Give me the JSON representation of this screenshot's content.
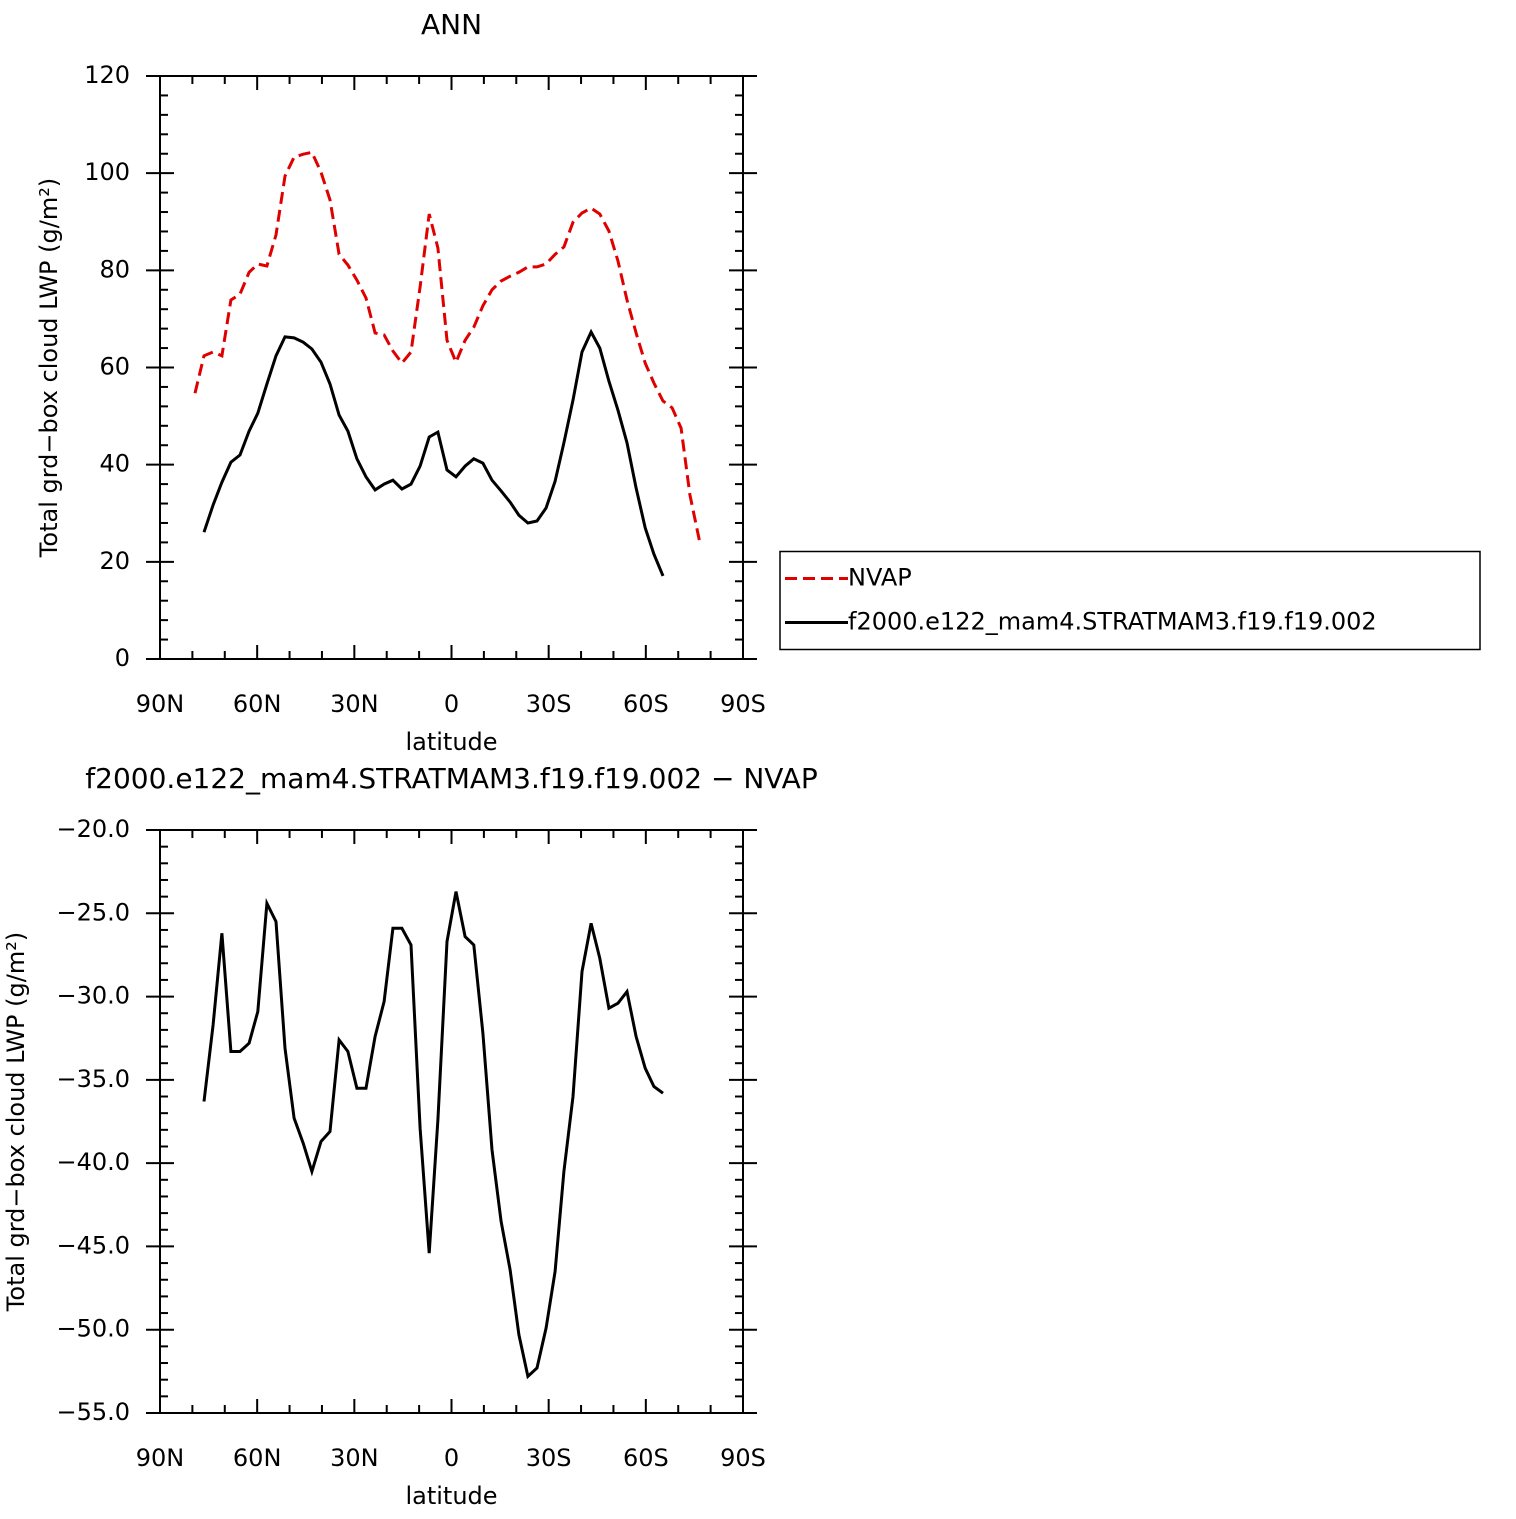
{
  "chart_data": [
    {
      "type": "line",
      "title": "ANN",
      "xlabel": "latitude",
      "ylabel": "Total grd−box cloud LWP (g/m²)",
      "xlim": [
        90,
        -90
      ],
      "ylim": [
        0,
        120
      ],
      "xticks": [
        {
          "value": 90,
          "label": "90N"
        },
        {
          "value": 60,
          "label": "60N"
        },
        {
          "value": 30,
          "label": "30N"
        },
        0,
        {
          "value": -30,
          "label": "30S"
        },
        {
          "value": -60,
          "label": "60S"
        },
        {
          "value": -90,
          "label": "90S"
        }
      ],
      "yticks": [
        0,
        20,
        40,
        60,
        80,
        100,
        120
      ],
      "legend": "right",
      "series": [
        {
          "name": "NVAP",
          "color": "#e00000",
          "linestyle": "dashed",
          "x": [
            79.2,
            76.4,
            73.6,
            70.9,
            68.1,
            65.3,
            62.5,
            59.8,
            57.0,
            54.2,
            51.4,
            48.6,
            45.8,
            43.1,
            40.3,
            37.5,
            34.7,
            32.0,
            29.2,
            26.4,
            23.6,
            20.8,
            18.1,
            15.3,
            12.5,
            9.7,
            6.9,
            4.2,
            1.4,
            -1.4,
            -4.2,
            -6.9,
            -9.7,
            -12.5,
            -15.3,
            -18.1,
            -20.8,
            -23.6,
            -26.4,
            -29.2,
            -32.0,
            -34.7,
            -37.5,
            -40.3,
            -43.1,
            -45.8,
            -48.6,
            -51.4,
            -54.2,
            -57.0,
            -59.8,
            -62.5,
            -65.3,
            -68.1,
            -70.9,
            -73.6,
            -76.7
          ],
          "values": [
            54.7,
            62.4,
            63.2,
            62.4,
            73.9,
            75.1,
            79.6,
            81.3,
            80.9,
            87.3,
            99.4,
            103.3,
            103.9,
            104.3,
            100.2,
            94.5,
            83.3,
            81.1,
            78.0,
            74.3,
            67.1,
            66.7,
            63.4,
            60.9,
            63.2,
            76.6,
            91.6,
            84.6,
            65.6,
            61.1,
            65.6,
            68.3,
            72.7,
            76.0,
            77.8,
            78.8,
            79.6,
            80.7,
            80.7,
            81.3,
            83.3,
            84.8,
            89.9,
            91.8,
            92.8,
            91.6,
            88.1,
            81.9,
            73.9,
            67.1,
            60.9,
            56.8,
            53.1,
            51.7,
            47.5,
            33.8,
            23.9
          ]
        },
        {
          "name": "f2000.e122_mam4.STRATMAM3.f19.f19.002",
          "color": "#000000",
          "linestyle": "solid",
          "x": [
            76.4,
            73.6,
            70.9,
            68.1,
            65.3,
            62.5,
            59.8,
            57.0,
            54.2,
            51.4,
            48.6,
            45.8,
            43.1,
            40.3,
            37.5,
            34.7,
            32.0,
            29.2,
            26.4,
            23.6,
            20.8,
            18.1,
            15.3,
            12.5,
            9.7,
            6.9,
            4.2,
            1.4,
            -1.4,
            -4.2,
            -6.9,
            -9.7,
            -12.5,
            -15.3,
            -18.1,
            -20.8,
            -23.6,
            -26.4,
            -29.2,
            -32.0,
            -34.7,
            -37.5,
            -40.3,
            -43.1,
            -45.8,
            -48.6,
            -51.4,
            -54.2,
            -57.0,
            -59.8,
            -62.5,
            -65.3
          ],
          "values": [
            26.1,
            31.7,
            36.4,
            40.5,
            42.0,
            46.9,
            50.6,
            56.6,
            62.4,
            66.3,
            66.1,
            65.2,
            63.8,
            61.1,
            56.6,
            50.2,
            46.9,
            41.2,
            37.5,
            34.8,
            36.0,
            36.8,
            35.0,
            36.0,
            39.7,
            45.7,
            46.7,
            38.9,
            37.5,
            39.7,
            41.2,
            40.3,
            36.8,
            34.6,
            32.3,
            29.6,
            28.0,
            28.4,
            31.1,
            36.6,
            44.5,
            53.3,
            63.2,
            67.3,
            64.0,
            57.2,
            51.2,
            44.5,
            35.2,
            27.0,
            21.6,
            17.1
          ]
        }
      ]
    },
    {
      "type": "line",
      "title": "f2000.e122_mam4.STRATMAM3.f19.f19.002 − NVAP",
      "xlabel": "latitude",
      "ylabel": "Total grd−box cloud LWP (g/m²)",
      "xlim": [
        90,
        -90
      ],
      "ylim": [
        -55,
        -20
      ],
      "xticks": [
        {
          "value": 90,
          "label": "90N"
        },
        {
          "value": 60,
          "label": "60N"
        },
        {
          "value": 30,
          "label": "30N"
        },
        0,
        {
          "value": -30,
          "label": "30S"
        },
        {
          "value": -60,
          "label": "60S"
        },
        {
          "value": -90,
          "label": "90S"
        }
      ],
      "yticks": [
        {
          "value": -55,
          "label": "−55.0"
        },
        {
          "value": -50,
          "label": "−50.0"
        },
        {
          "value": -45,
          "label": "−45.0"
        },
        {
          "value": -40,
          "label": "−40.0"
        },
        {
          "value": -35,
          "label": "−35.0"
        },
        {
          "value": -30,
          "label": "−30.0"
        },
        {
          "value": -25,
          "label": "−25.0"
        },
        {
          "value": -20,
          "label": "−20.0"
        }
      ],
      "series": [
        {
          "color": "#000000",
          "linestyle": "solid",
          "x": [
            76.4,
            73.6,
            70.9,
            68.1,
            65.3,
            62.5,
            59.8,
            57.0,
            54.2,
            51.4,
            48.6,
            45.8,
            43.1,
            40.3,
            37.5,
            34.7,
            32.0,
            29.2,
            26.4,
            23.6,
            20.8,
            18.1,
            15.3,
            12.5,
            9.7,
            6.9,
            4.2,
            1.4,
            -1.4,
            -4.2,
            -6.9,
            -9.7,
            -12.5,
            -15.3,
            -18.1,
            -20.8,
            -23.6,
            -26.4,
            -29.2,
            -32.0,
            -34.7,
            -37.5,
            -40.3,
            -43.1,
            -45.8,
            -48.6,
            -51.4,
            -54.2,
            -57.0,
            -59.8,
            -62.5,
            -65.3
          ],
          "values": [
            -36.3,
            -31.7,
            -26.2,
            -33.3,
            -33.3,
            -32.8,
            -30.9,
            -24.4,
            -25.5,
            -33.1,
            -37.3,
            -38.8,
            -40.5,
            -38.7,
            -38.1,
            -32.6,
            -33.3,
            -35.5,
            -35.5,
            -32.4,
            -30.3,
            -25.9,
            -25.9,
            -26.9,
            -37.9,
            -45.4,
            -37.4,
            -26.7,
            -23.7,
            -26.4,
            -26.9,
            -32.2,
            -39.2,
            -43.5,
            -46.4,
            -50.3,
            -52.8,
            -52.3,
            -49.9,
            -46.5,
            -40.5,
            -36.0,
            -28.5,
            -25.6,
            -27.7,
            -30.7,
            -30.4,
            -29.7,
            -32.4,
            -34.3,
            -35.4,
            -35.8
          ]
        }
      ]
    }
  ]
}
